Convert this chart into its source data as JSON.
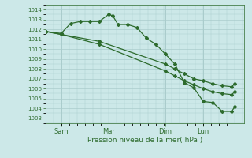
{
  "xlabel": "Pression niveau de la mer( hPa )",
  "bg_color": "#cce8e8",
  "grid_color": "#aacccc",
  "line_color": "#2d6b2d",
  "marker_color": "#2d6b2d",
  "ylim": [
    1002.5,
    1014.5
  ],
  "yticks": [
    1003,
    1004,
    1005,
    1006,
    1007,
    1008,
    1009,
    1010,
    1011,
    1012,
    1013,
    1014
  ],
  "xlim": [
    0.0,
    1.05
  ],
  "day_labels": [
    "Sam",
    "Mar",
    "Dim",
    "Lun"
  ],
  "day_positions": [
    0.083,
    0.333,
    0.633,
    0.833
  ],
  "series1_x": [
    0.0,
    0.083,
    0.133,
    0.183,
    0.233,
    0.283,
    0.333,
    0.355,
    0.383,
    0.433,
    0.483,
    0.533,
    0.583,
    0.633,
    0.683,
    0.733,
    0.783,
    0.833,
    0.883,
    0.933,
    0.983,
    1.0
  ],
  "series1_y": [
    1011.8,
    1011.6,
    1012.6,
    1012.8,
    1012.8,
    1012.8,
    1013.5,
    1013.4,
    1012.5,
    1012.5,
    1012.2,
    1011.1,
    1010.5,
    1009.5,
    1008.5,
    1006.6,
    1006.1,
    1004.7,
    1004.6,
    1003.7,
    1003.7,
    1004.2
  ],
  "series2_x": [
    0.0,
    0.083,
    0.283,
    0.633,
    0.683,
    0.733,
    0.783,
    0.833,
    0.883,
    0.933,
    0.983,
    1.0
  ],
  "series2_y": [
    1011.8,
    1011.5,
    1010.8,
    1008.5,
    1008.0,
    1007.5,
    1007.0,
    1006.8,
    1006.5,
    1006.3,
    1006.2,
    1006.5
  ],
  "series3_x": [
    0.0,
    0.083,
    0.283,
    0.633,
    0.683,
    0.733,
    0.783,
    0.833,
    0.883,
    0.933,
    0.983,
    1.0
  ],
  "series3_y": [
    1011.8,
    1011.5,
    1010.5,
    1007.8,
    1007.3,
    1006.8,
    1006.4,
    1006.0,
    1005.7,
    1005.5,
    1005.4,
    1005.7
  ]
}
